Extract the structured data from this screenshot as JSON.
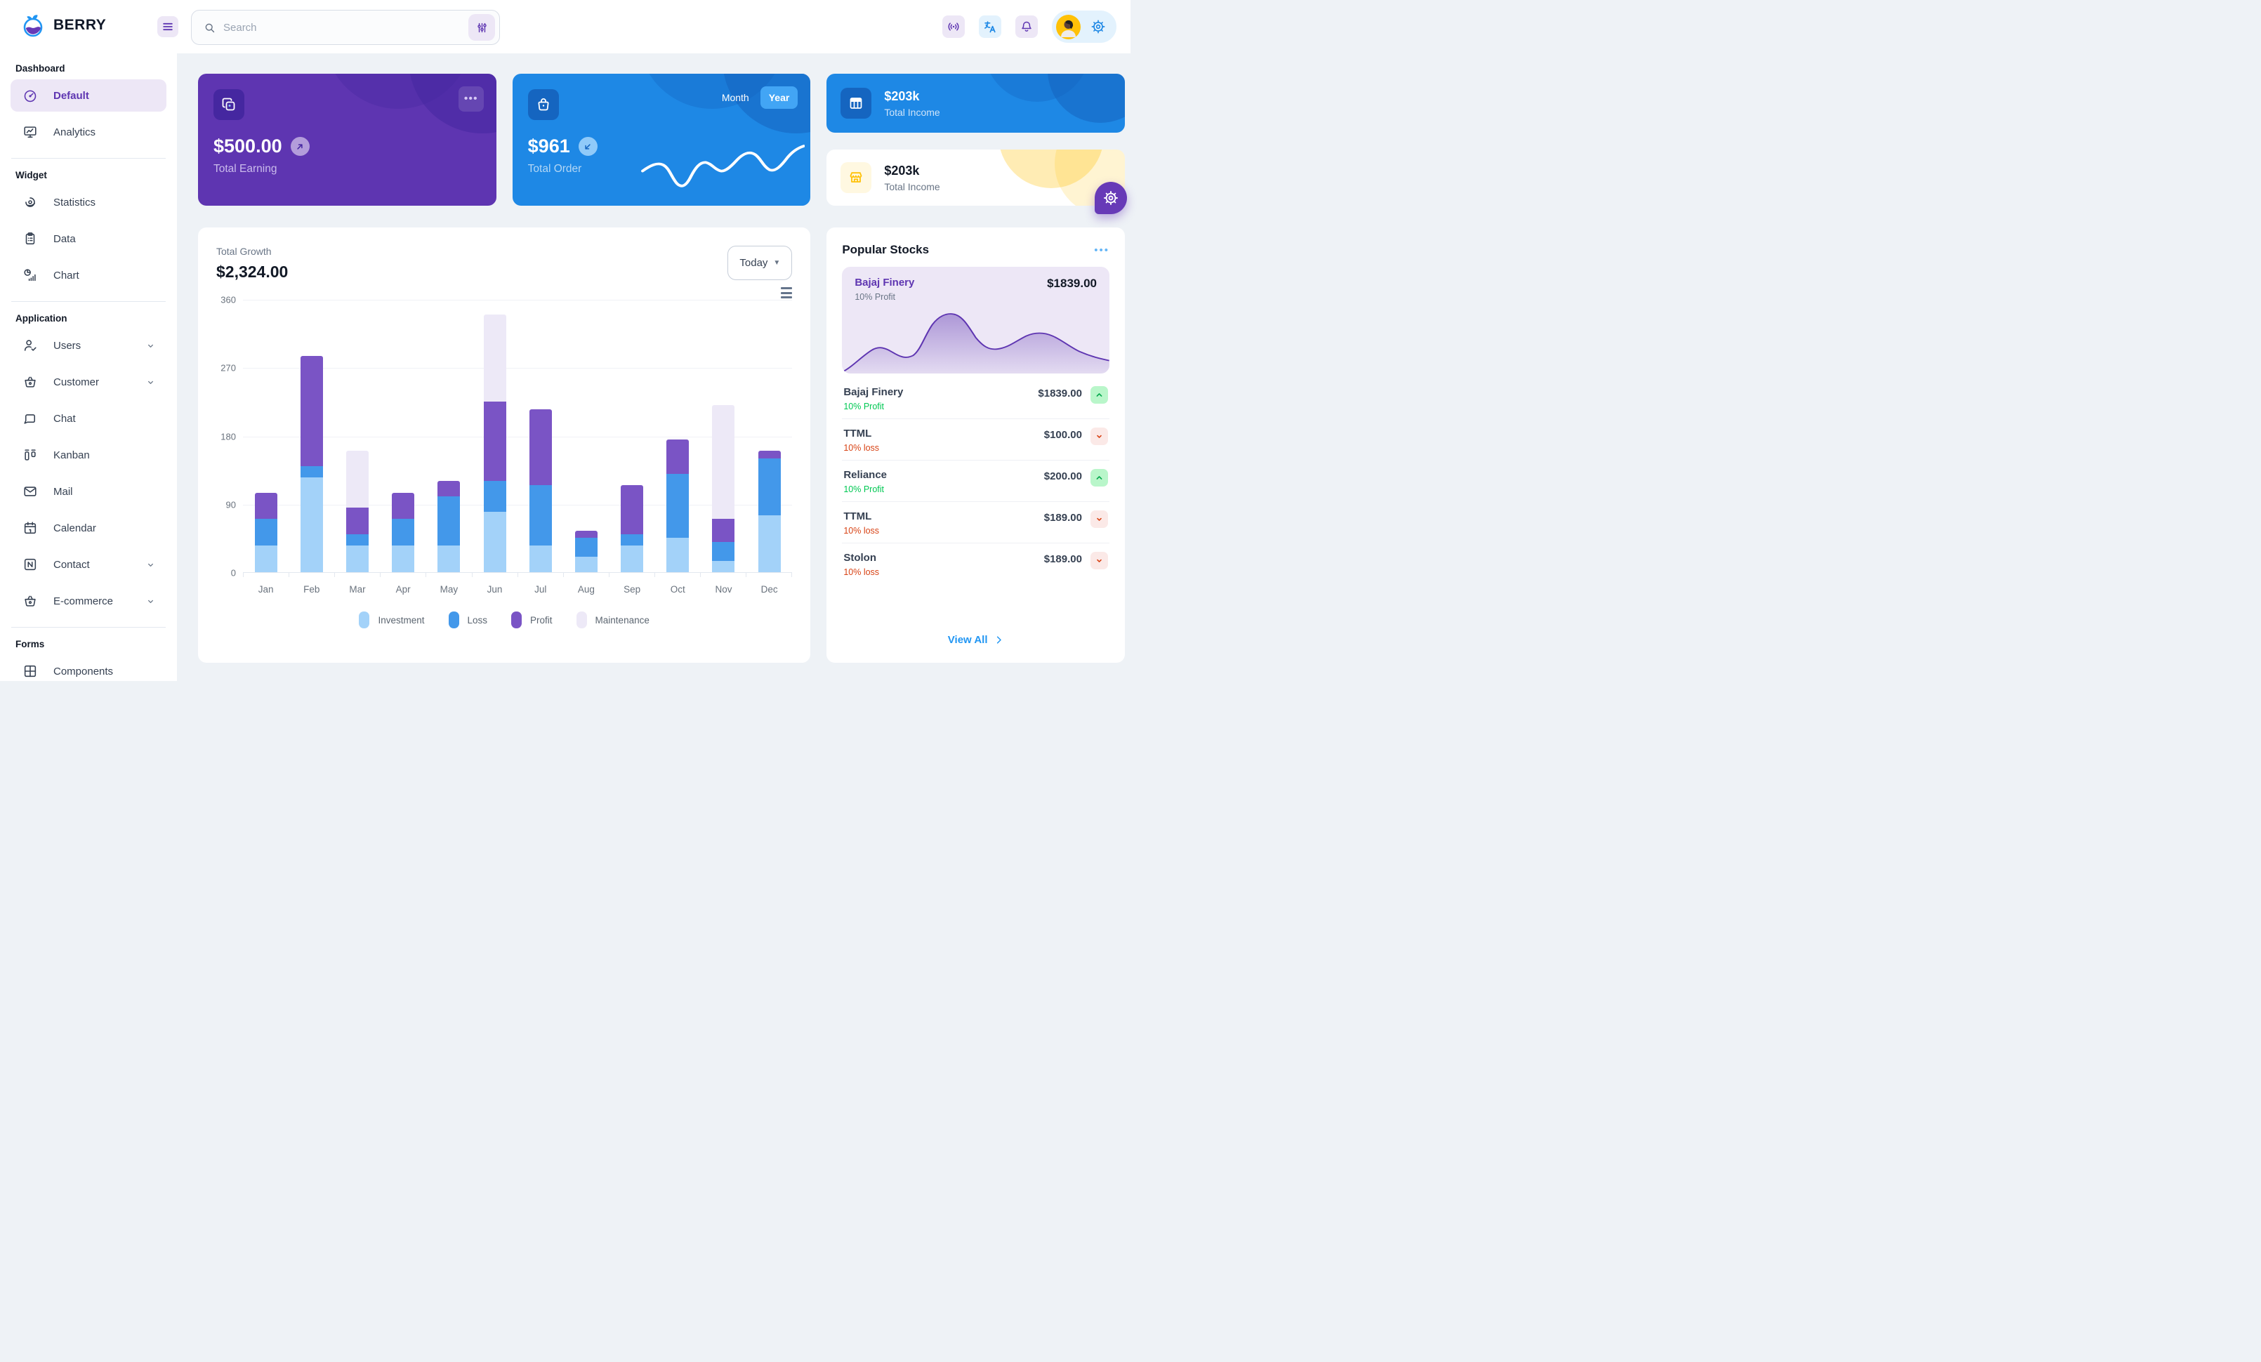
{
  "header": {
    "brand": "BERRY",
    "search_placeholder": "Search"
  },
  "sidebar": {
    "sections": [
      {
        "title": "Dashboard",
        "items": [
          {
            "label": "Default",
            "icon": "gauge",
            "active": true,
            "chevron": false
          },
          {
            "label": "Analytics",
            "icon": "analytics",
            "active": false,
            "chevron": false
          }
        ]
      },
      {
        "title": "Widget",
        "items": [
          {
            "label": "Statistics",
            "icon": "stats",
            "active": false,
            "chevron": false
          },
          {
            "label": "Data",
            "icon": "clipboard",
            "active": false,
            "chevron": false
          },
          {
            "label": "Chart",
            "icon": "chartpie",
            "active": false,
            "chevron": false
          }
        ]
      },
      {
        "title": "Application",
        "items": [
          {
            "label": "Users",
            "icon": "usercheck",
            "active": false,
            "chevron": true
          },
          {
            "label": "Customer",
            "icon": "basket",
            "active": false,
            "chevron": true
          },
          {
            "label": "Chat",
            "icon": "chat",
            "active": false,
            "chevron": false
          },
          {
            "label": "Kanban",
            "icon": "kanban",
            "active": false,
            "chevron": false
          },
          {
            "label": "Mail",
            "icon": "mail",
            "active": false,
            "chevron": false
          },
          {
            "label": "Calendar",
            "icon": "calendar",
            "active": false,
            "chevron": false
          },
          {
            "label": "Contact",
            "icon": "contact",
            "active": false,
            "chevron": true
          },
          {
            "label": "E-commerce",
            "icon": "basket",
            "active": false,
            "chevron": true
          }
        ]
      },
      {
        "title": "Forms",
        "items": [
          {
            "label": "Components",
            "icon": "box",
            "active": false,
            "chevron": false
          }
        ]
      }
    ]
  },
  "cards": {
    "earning": {
      "value": "$500.00",
      "label": "Total Earning"
    },
    "order": {
      "value": "$961",
      "label": "Total Order",
      "toggle": [
        "Month",
        "Year"
      ],
      "active_toggle": "Year"
    },
    "income_blue": {
      "value": "$203k",
      "label": "Total Income"
    },
    "income_light": {
      "value": "$203k",
      "label": "Total Income"
    }
  },
  "growth": {
    "title": "Total Growth",
    "amount": "$2,324.00",
    "range_label": "Today"
  },
  "chart_data": {
    "type": "bar",
    "stacked": true,
    "title": "Total Growth",
    "categories": [
      "Jan",
      "Feb",
      "Mar",
      "Apr",
      "May",
      "Jun",
      "Jul",
      "Aug",
      "Sep",
      "Oct",
      "Nov",
      "Dec"
    ],
    "series": [
      {
        "name": "Investment",
        "color": "#a3d2f9",
        "values": [
          35,
          125,
          35,
          35,
          35,
          80,
          35,
          20,
          35,
          45,
          15,
          75
        ]
      },
      {
        "name": "Loss",
        "color": "#4398ea",
        "values": [
          35,
          15,
          15,
          35,
          65,
          40,
          80,
          25,
          15,
          85,
          25,
          75
        ]
      },
      {
        "name": "Profit",
        "color": "#7a54c5",
        "values": [
          35,
          145,
          35,
          35,
          20,
          105,
          100,
          10,
          65,
          45,
          30,
          10
        ]
      },
      {
        "name": "Maintenance",
        "color": "#ede9f7",
        "values": [
          0,
          0,
          75,
          0,
          0,
          115,
          0,
          0,
          0,
          0,
          150,
          0
        ]
      }
    ],
    "ylim": [
      0,
      360
    ],
    "yticks": [
      0,
      90,
      180,
      270,
      360
    ],
    "grid": true,
    "legend_position": "bottom"
  },
  "stocks": {
    "title": "Popular Stocks",
    "featured": {
      "name": "Bajaj Finery",
      "price": "$1839.00",
      "change": "10% Profit"
    },
    "items": [
      {
        "name": "Bajaj Finery",
        "price": "$1839.00",
        "status": "10% Profit",
        "direction": "up"
      },
      {
        "name": "TTML",
        "price": "$100.00",
        "status": "10% loss",
        "direction": "down"
      },
      {
        "name": "Reliance",
        "price": "$200.00",
        "status": "10% Profit",
        "direction": "up"
      },
      {
        "name": "TTML",
        "price": "$189.00",
        "status": "10% loss",
        "direction": "down"
      },
      {
        "name": "Stolon",
        "price": "$189.00",
        "status": "10% loss",
        "direction": "down"
      }
    ],
    "view_all": "View All"
  },
  "colors": {
    "primary": "#2196f3",
    "primary_dark": "#1e88e5",
    "primary_800": "#1565c0",
    "primary_light": "#e3f2fd",
    "secondary": "#673ab7",
    "secondary_dark": "#5e35b1",
    "secondary_800": "#4527a0",
    "secondary_light": "#ede7f6",
    "success": "#00c853",
    "success_light": "#b9f6ca",
    "error": "#d84315",
    "error_light": "#fbe9e7",
    "warning": "#ffc107",
    "warning_light": "#fff8e1",
    "background": "#eef2f6"
  }
}
